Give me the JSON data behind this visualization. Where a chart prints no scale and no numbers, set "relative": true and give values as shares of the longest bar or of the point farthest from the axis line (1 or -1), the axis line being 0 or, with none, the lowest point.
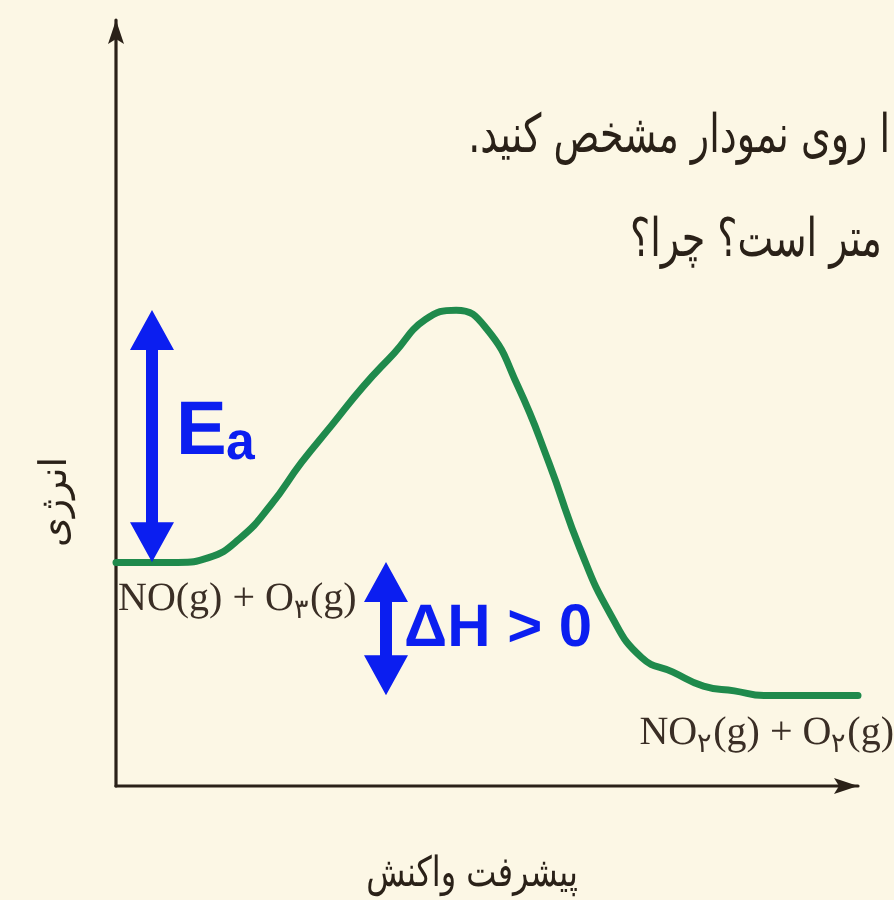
{
  "chart_data": {
    "type": "line",
    "relative": true,
    "xlabel": "پیشرفت واکنش",
    "ylabel": "انرژی",
    "annotations": [
      "ا روی نمودار مشخص کنید.",
      "متر است؟ چرا؟",
      "NO(g) + O$_{۳}$(g)",
      "NO$_{۲}$(g) + O$_{۲}$(g)",
      "Eₐ",
      "ΔH > 0"
    ],
    "categories": [
      null,
      null,
      null,
      null,
      null,
      null,
      null,
      null,
      null,
      null,
      null,
      null,
      null,
      null,
      null,
      null,
      null,
      null,
      null,
      null,
      null,
      null,
      null,
      null,
      null
    ],
    "values": [
      0.47,
      0.47,
      0.47,
      0.48,
      0.52,
      0.59,
      0.68,
      0.76,
      0.84,
      0.91,
      0.98,
      1,
      0.96,
      0.84,
      0.68,
      0.5,
      0.36,
      0.27,
      0.24,
      0.21,
      0.2,
      0.19,
      0.19,
      0.19,
      0.19
    ],
    "color": "#1f8a4c",
    "marker": "none"
  }
}
